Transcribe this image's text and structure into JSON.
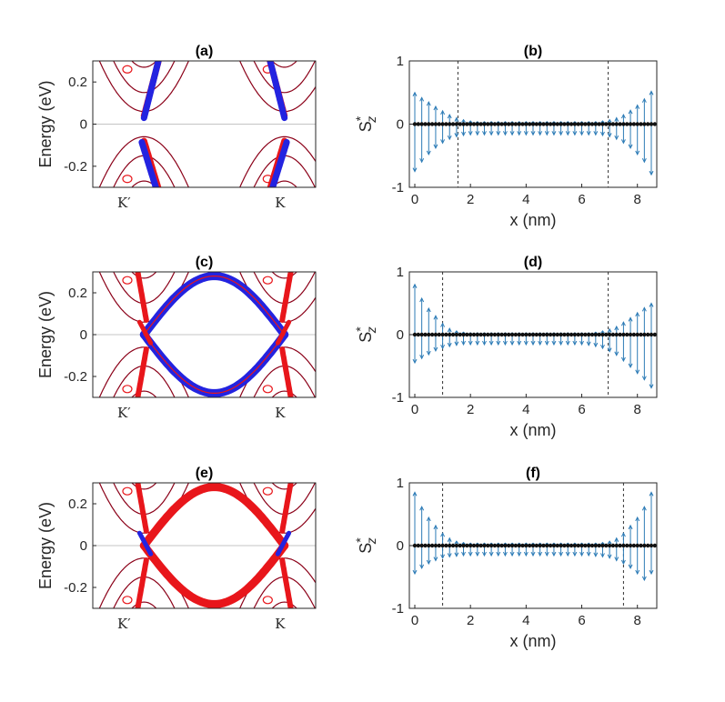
{
  "colors": {
    "band_red": "#e8161b",
    "band_blue": "#2323e0",
    "band_dark": "#8b0018",
    "spin_blue": "#2c7bb6",
    "dot_black": "#111111",
    "dash": "#333333"
  },
  "chart_data": [
    {
      "id": "a",
      "type": "line",
      "title": "(a)",
      "xlabel": "",
      "ylabel": "Energy (eV)",
      "ylim": [
        -0.3,
        0.3
      ],
      "yticks": [
        -0.2,
        0,
        0.2
      ],
      "ytick_labels": [
        "-0.2",
        "0",
        "0.2"
      ],
      "xtick_labels": [
        "K′",
        "K"
      ],
      "edge_gap_eV": [
        -0.04,
        0.04
      ],
      "edge_state_weight": "blue_near_valleys"
    },
    {
      "id": "b",
      "type": "scatter",
      "title": "(b)",
      "xlabel": "x (nm)",
      "ylabel": "S*z",
      "xlim": [
        0,
        8.5
      ],
      "ylim": [
        -1,
        1
      ],
      "xticks": [
        0,
        2,
        4,
        6,
        8
      ],
      "yticks": [
        -1,
        0,
        1
      ],
      "xtick_labels": [
        "0",
        "2",
        "4",
        "6",
        "8"
      ],
      "ytick_labels": [
        "-1",
        "0",
        "1"
      ],
      "dashed_x": [
        1.55,
        6.95
      ],
      "sites_x": [
        0.0,
        0.25,
        0.5,
        0.75,
        1.0,
        1.25,
        1.5,
        1.75,
        2.0,
        2.25,
        2.5,
        2.75,
        3.0,
        3.25,
        3.5,
        3.75,
        4.0,
        4.25,
        4.5,
        4.75,
        5.0,
        5.25,
        5.5,
        5.75,
        6.0,
        6.25,
        6.5,
        6.75,
        7.0,
        7.25,
        7.5,
        7.75,
        8.0,
        8.25,
        8.5
      ],
      "spin_up": [
        0.5,
        0.42,
        0.35,
        0.28,
        0.21,
        0.15,
        0.1,
        0.07,
        0.05,
        0.04,
        0.04,
        0.04,
        0.04,
        0.04,
        0.04,
        0.04,
        0.04,
        0.04,
        0.04,
        0.04,
        0.04,
        0.04,
        0.04,
        0.04,
        0.04,
        0.04,
        0.04,
        0.05,
        0.07,
        0.1,
        0.15,
        0.22,
        0.3,
        0.4,
        0.52
      ],
      "spin_down": [
        -0.75,
        -0.6,
        -0.48,
        -0.38,
        -0.3,
        -0.24,
        -0.2,
        -0.18,
        -0.17,
        -0.17,
        -0.17,
        -0.17,
        -0.17,
        -0.17,
        -0.17,
        -0.17,
        -0.17,
        -0.17,
        -0.17,
        -0.17,
        -0.17,
        -0.17,
        -0.17,
        -0.17,
        -0.17,
        -0.17,
        -0.17,
        -0.18,
        -0.2,
        -0.24,
        -0.3,
        -0.38,
        -0.48,
        -0.6,
        -0.8
      ]
    },
    {
      "id": "c",
      "type": "line",
      "title": "(c)",
      "xlabel": "",
      "ylabel": "Energy (eV)",
      "ylim": [
        -0.3,
        0.3
      ],
      "yticks": [
        -0.2,
        0,
        0.2
      ],
      "ytick_labels": [
        "-0.2",
        "0",
        "0.2"
      ],
      "xtick_labels": [
        "K′",
        "K"
      ],
      "edge_arc_peak_eV": 0.28,
      "edge_state_weight": "blue_arc"
    },
    {
      "id": "d",
      "type": "scatter",
      "title": "(d)",
      "xlabel": "x (nm)",
      "ylabel": "S*z",
      "xlim": [
        0,
        8.5
      ],
      "ylim": [
        -1,
        1
      ],
      "xticks": [
        0,
        2,
        4,
        6,
        8
      ],
      "yticks": [
        -1,
        0,
        1
      ],
      "xtick_labels": [
        "0",
        "2",
        "4",
        "6",
        "8"
      ],
      "ytick_labels": [
        "-1",
        "0",
        "1"
      ],
      "dashed_x": [
        1.0,
        6.95
      ],
      "sites_x": [
        0.0,
        0.25,
        0.5,
        0.75,
        1.0,
        1.25,
        1.5,
        1.75,
        2.0,
        2.25,
        2.5,
        2.75,
        3.0,
        3.25,
        3.5,
        3.75,
        4.0,
        4.25,
        4.5,
        4.75,
        5.0,
        5.25,
        5.5,
        5.75,
        6.0,
        6.25,
        6.5,
        6.75,
        7.0,
        7.25,
        7.5,
        7.75,
        8.0,
        8.25,
        8.5
      ],
      "spin_up": [
        0.8,
        0.58,
        0.42,
        0.3,
        0.18,
        0.1,
        0.06,
        0.04,
        0.03,
        0.03,
        0.03,
        0.03,
        0.03,
        0.03,
        0.03,
        0.03,
        0.03,
        0.03,
        0.03,
        0.03,
        0.03,
        0.03,
        0.03,
        0.03,
        0.03,
        0.03,
        0.04,
        0.06,
        0.09,
        0.13,
        0.2,
        0.27,
        0.35,
        0.43,
        0.5
      ],
      "spin_down": [
        -0.45,
        -0.38,
        -0.32,
        -0.26,
        -0.22,
        -0.19,
        -0.17,
        -0.16,
        -0.16,
        -0.16,
        -0.16,
        -0.16,
        -0.16,
        -0.16,
        -0.16,
        -0.16,
        -0.16,
        -0.16,
        -0.16,
        -0.16,
        -0.16,
        -0.16,
        -0.16,
        -0.16,
        -0.16,
        -0.17,
        -0.19,
        -0.22,
        -0.27,
        -0.33,
        -0.42,
        -0.52,
        -0.62,
        -0.72,
        -0.85
      ]
    },
    {
      "id": "e",
      "type": "line",
      "title": "(e)",
      "xlabel": "",
      "ylabel": "Energy (eV)",
      "ylim": [
        -0.3,
        0.3
      ],
      "yticks": [
        -0.2,
        0,
        0.2
      ],
      "ytick_labels": [
        "-0.2",
        "0",
        "0.2"
      ],
      "xtick_labels": [
        "K′",
        "K"
      ],
      "edge_arc_peak_eV": 0.28,
      "edge_state_weight": "red_arc"
    },
    {
      "id": "f",
      "type": "scatter",
      "title": "(f)",
      "xlabel": "x (nm)",
      "ylabel": "S*z",
      "xlim": [
        0,
        8.5
      ],
      "ylim": [
        -1,
        1
      ],
      "xticks": [
        0,
        2,
        4,
        6,
        8
      ],
      "yticks": [
        -1,
        0,
        1
      ],
      "xtick_labels": [
        "0",
        "2",
        "4",
        "6",
        "8"
      ],
      "ytick_labels": [
        "-1",
        "0",
        "1"
      ],
      "dashed_x": [
        1.0,
        7.5
      ],
      "sites_x": [
        0.0,
        0.25,
        0.5,
        0.75,
        1.0,
        1.25,
        1.5,
        1.75,
        2.0,
        2.25,
        2.5,
        2.75,
        3.0,
        3.25,
        3.5,
        3.75,
        4.0,
        4.25,
        4.5,
        4.75,
        5.0,
        5.25,
        5.5,
        5.75,
        6.0,
        6.25,
        6.5,
        6.75,
        7.0,
        7.25,
        7.5,
        7.75,
        8.0,
        8.25,
        8.5
      ],
      "spin_up": [
        0.85,
        0.62,
        0.45,
        0.32,
        0.2,
        0.12,
        0.07,
        0.05,
        0.04,
        0.04,
        0.04,
        0.04,
        0.04,
        0.04,
        0.04,
        0.04,
        0.04,
        0.04,
        0.04,
        0.04,
        0.04,
        0.04,
        0.04,
        0.04,
        0.04,
        0.04,
        0.04,
        0.05,
        0.07,
        0.12,
        0.2,
        0.32,
        0.45,
        0.62,
        0.85
      ],
      "spin_down": [
        -0.45,
        -0.36,
        -0.29,
        -0.24,
        -0.2,
        -0.18,
        -0.17,
        -0.16,
        -0.16,
        -0.16,
        -0.16,
        -0.16,
        -0.16,
        -0.16,
        -0.16,
        -0.16,
        -0.16,
        -0.16,
        -0.16,
        -0.16,
        -0.16,
        -0.16,
        -0.16,
        -0.16,
        -0.16,
        -0.16,
        -0.17,
        -0.18,
        -0.2,
        -0.24,
        -0.29,
        -0.36,
        -0.45,
        -0.55,
        -0.45
      ]
    }
  ]
}
